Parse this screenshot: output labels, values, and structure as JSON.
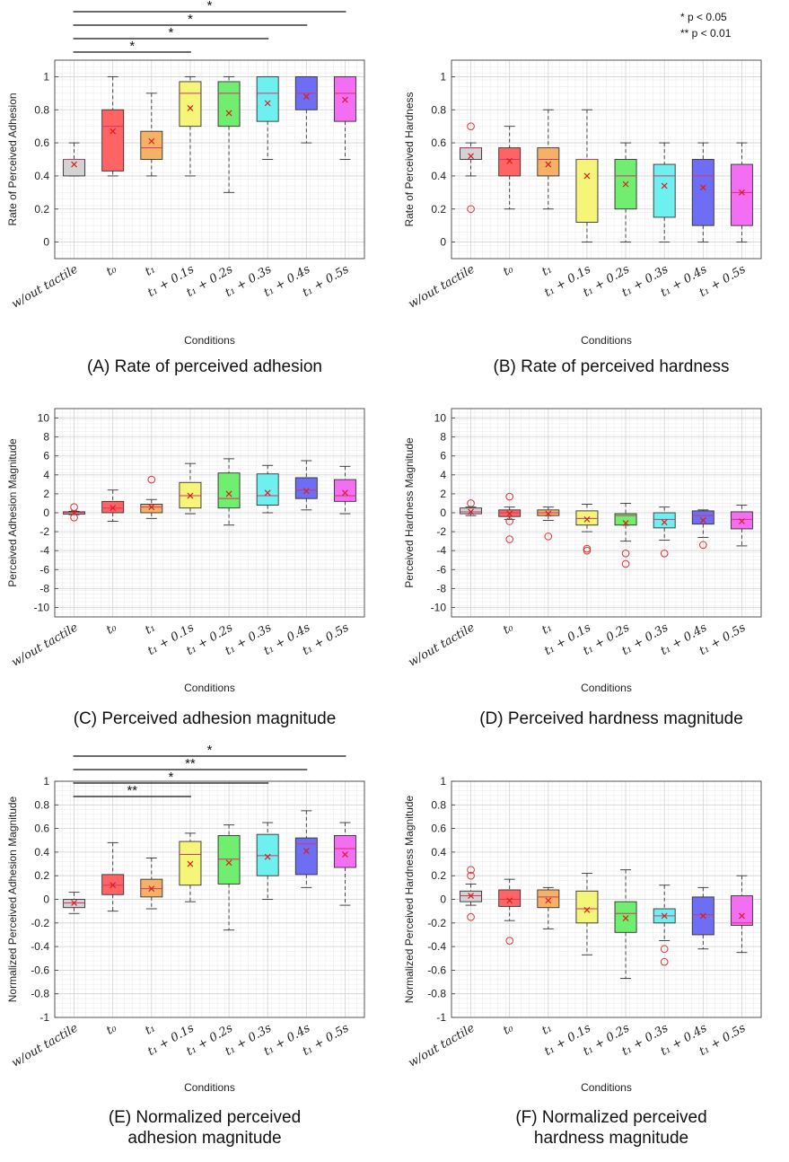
{
  "legend_note": {
    "single": "*   p < 0.05",
    "double": "** p < 0.01"
  },
  "chart_data": [
    {
      "id": "A",
      "type": "box",
      "caption": [
        "(A) Rate of perceived adhesion"
      ],
      "ylabel": "Rate of Perceived Adhesion",
      "xlabel": "Conditions",
      "ylim": [
        -0.1,
        1.1
      ],
      "yticks": [
        0,
        0.2,
        0.4,
        0.6,
        0.8,
        1
      ],
      "categories": [
        "w/out tactile",
        "t₀",
        "t₁",
        "t₁ + 0.1s",
        "t₁ + 0.2s",
        "t₁ + 0.3s",
        "t₁ + 0.4s",
        "t₁ + 0.5s"
      ],
      "colors": [
        "#d3d3d3",
        "#ff6464",
        "#f5b266",
        "#f5f57a",
        "#6fee6f",
        "#6ff0f0",
        "#6e6ef4",
        "#f46ef4"
      ],
      "boxes": [
        {
          "min": 0.4,
          "q1": 0.4,
          "median": 0.5,
          "q3": 0.5,
          "max": 0.6,
          "mean": 0.47,
          "outliers": []
        },
        {
          "min": 0.4,
          "q1": 0.43,
          "median": 0.7,
          "q3": 0.8,
          "max": 1.0,
          "mean": 0.67,
          "outliers": []
        },
        {
          "min": 0.4,
          "q1": 0.5,
          "median": 0.57,
          "q3": 0.67,
          "max": 0.9,
          "mean": 0.61,
          "outliers": []
        },
        {
          "min": 0.4,
          "q1": 0.7,
          "median": 0.9,
          "q3": 0.97,
          "max": 1.0,
          "mean": 0.81,
          "outliers": []
        },
        {
          "min": 0.3,
          "q1": 0.7,
          "median": 0.9,
          "q3": 0.97,
          "max": 1.0,
          "mean": 0.78,
          "outliers": []
        },
        {
          "min": 0.5,
          "q1": 0.73,
          "median": 0.9,
          "q3": 1.0,
          "max": 1.0,
          "mean": 0.84,
          "outliers": []
        },
        {
          "min": 0.6,
          "q1": 0.8,
          "median": 0.9,
          "q3": 1.0,
          "max": 1.0,
          "mean": 0.88,
          "outliers": []
        },
        {
          "min": 0.5,
          "q1": 0.73,
          "median": 0.9,
          "q3": 1.0,
          "max": 1.0,
          "mean": 0.86,
          "outliers": []
        }
      ],
      "significance": [
        {
          "from": 0,
          "to": 3,
          "label": "*"
        },
        {
          "from": 0,
          "to": 5,
          "label": "*"
        },
        {
          "from": 0,
          "to": 6,
          "label": "*"
        },
        {
          "from": 0,
          "to": 7,
          "label": "*"
        }
      ]
    },
    {
      "id": "B",
      "type": "box",
      "caption": [
        "(B) Rate of perceived hardness"
      ],
      "ylabel": "Rate of Perceived Hardness",
      "xlabel": "Conditions",
      "ylim": [
        -0.1,
        1.1
      ],
      "yticks": [
        0,
        0.2,
        0.4,
        0.6,
        0.8,
        1
      ],
      "categories": [
        "w/out tactile",
        "t₀",
        "t₁",
        "t₁ + 0.1s",
        "t₁ + 0.2s",
        "t₁ + 0.3s",
        "t₁ + 0.4s",
        "t₁ + 0.5s"
      ],
      "colors": [
        "#d3d3d3",
        "#ff6464",
        "#f5b266",
        "#f5f57a",
        "#6fee6f",
        "#6ff0f0",
        "#6e6ef4",
        "#f46ef4"
      ],
      "boxes": [
        {
          "min": 0.4,
          "q1": 0.5,
          "median": 0.57,
          "q3": 0.57,
          "max": 0.6,
          "mean": 0.52,
          "outliers": [
            0.7,
            0.2
          ]
        },
        {
          "min": 0.2,
          "q1": 0.4,
          "median": 0.5,
          "q3": 0.57,
          "max": 0.7,
          "mean": 0.49,
          "outliers": []
        },
        {
          "min": 0.2,
          "q1": 0.4,
          "median": 0.5,
          "q3": 0.57,
          "max": 0.8,
          "mean": 0.47,
          "outliers": []
        },
        {
          "min": 0.0,
          "q1": 0.12,
          "median": 0.5,
          "q3": 0.5,
          "max": 0.8,
          "mean": 0.4,
          "outliers": []
        },
        {
          "min": 0.0,
          "q1": 0.2,
          "median": 0.4,
          "q3": 0.5,
          "max": 0.6,
          "mean": 0.35,
          "outliers": []
        },
        {
          "min": 0.0,
          "q1": 0.15,
          "median": 0.4,
          "q3": 0.47,
          "max": 0.6,
          "mean": 0.34,
          "outliers": []
        },
        {
          "min": 0.0,
          "q1": 0.1,
          "median": 0.4,
          "q3": 0.5,
          "max": 0.6,
          "mean": 0.33,
          "outliers": []
        },
        {
          "min": 0.0,
          "q1": 0.1,
          "median": 0.3,
          "q3": 0.47,
          "max": 0.6,
          "mean": 0.3,
          "outliers": []
        }
      ],
      "significance": []
    },
    {
      "id": "C",
      "type": "box",
      "caption": [
        "(C) Perceived adhesion magnitude"
      ],
      "ylabel": "Perceived Adhesion Magnitude",
      "xlabel": "Conditions",
      "ylim": [
        -11,
        11
      ],
      "yticks": [
        -10,
        -8,
        -6,
        -4,
        -2,
        0,
        2,
        4,
        6,
        8,
        10
      ],
      "categories": [
        "w/out tactile",
        "t₀",
        "t₁",
        "t₁ + 0.1s",
        "t₁ + 0.2s",
        "t₁ + 0.3s",
        "t₁ + 0.4s",
        "t₁ + 0.5s"
      ],
      "colors": [
        "#d3d3d3",
        "#ff6464",
        "#f5b266",
        "#f5f57a",
        "#6fee6f",
        "#6ff0f0",
        "#6e6ef4",
        "#f46ef4"
      ],
      "boxes": [
        {
          "min": -0.2,
          "q1": -0.15,
          "median": 0.0,
          "q3": 0.1,
          "max": 0.15,
          "mean": 0.0,
          "outliers": [
            0.6,
            -0.5
          ]
        },
        {
          "min": -0.9,
          "q1": 0.0,
          "median": 0.5,
          "q3": 1.2,
          "max": 2.4,
          "mean": 0.5,
          "outliers": []
        },
        {
          "min": -0.6,
          "q1": 0.0,
          "median": 0.6,
          "q3": 0.9,
          "max": 1.4,
          "mean": 0.6,
          "outliers": [
            3.5
          ]
        },
        {
          "min": -0.1,
          "q1": 0.5,
          "median": 1.8,
          "q3": 3.2,
          "max": 5.2,
          "mean": 1.8,
          "outliers": []
        },
        {
          "min": -1.3,
          "q1": 0.5,
          "median": 1.5,
          "q3": 4.2,
          "max": 5.7,
          "mean": 2.0,
          "outliers": []
        },
        {
          "min": 0.0,
          "q1": 0.8,
          "median": 1.8,
          "q3": 4.1,
          "max": 5.0,
          "mean": 2.1,
          "outliers": []
        },
        {
          "min": 0.3,
          "q1": 1.5,
          "median": 2.4,
          "q3": 3.7,
          "max": 5.5,
          "mean": 2.3,
          "outliers": []
        },
        {
          "min": -0.1,
          "q1": 1.2,
          "median": 1.8,
          "q3": 3.5,
          "max": 4.9,
          "mean": 2.1,
          "outliers": []
        }
      ],
      "significance": []
    },
    {
      "id": "D",
      "type": "box",
      "caption": [
        "(D) Perceived hardness magnitude"
      ],
      "ylabel": "Perceived Hardness Magnitude",
      "xlabel": "Conditions",
      "ylim": [
        -11,
        11
      ],
      "yticks": [
        -10,
        -8,
        -6,
        -4,
        -2,
        0,
        2,
        4,
        6,
        8,
        10
      ],
      "categories": [
        "w/out tactile",
        "t₀",
        "t₁",
        "t₁ + 0.1s",
        "t₁ + 0.2s",
        "t₁ + 0.3s",
        "t₁ + 0.4s",
        "t₁ + 0.5s"
      ],
      "colors": [
        "#d3d3d3",
        "#ff6464",
        "#f5b266",
        "#f5f57a",
        "#6fee6f",
        "#6ff0f0",
        "#6e6ef4",
        "#f46ef4"
      ],
      "boxes": [
        {
          "min": -0.3,
          "q1": -0.1,
          "median": 0.1,
          "q3": 0.5,
          "max": 0.6,
          "mean": 0.1,
          "outliers": [
            1.0
          ]
        },
        {
          "min": -0.7,
          "q1": -0.4,
          "median": 0.0,
          "q3": 0.3,
          "max": 0.6,
          "mean": -0.1,
          "outliers": [
            1.7,
            -0.9,
            -2.8
          ]
        },
        {
          "min": -0.8,
          "q1": -0.3,
          "median": 0.0,
          "q3": 0.3,
          "max": 0.6,
          "mean": -0.1,
          "outliers": [
            -2.5
          ]
        },
        {
          "min": -2.0,
          "q1": -1.3,
          "median": -0.6,
          "q3": 0.2,
          "max": 0.9,
          "mean": -0.7,
          "outliers": [
            -3.8,
            -4.0
          ]
        },
        {
          "min": -3.0,
          "q1": -1.3,
          "median": -0.3,
          "q3": -0.1,
          "max": 1.0,
          "mean": -1.1,
          "outliers": [
            -4.3,
            -5.4
          ]
        },
        {
          "min": -2.9,
          "q1": -1.6,
          "median": -0.7,
          "q3": 0.0,
          "max": 0.6,
          "mean": -1.0,
          "outliers": [
            -4.3
          ]
        },
        {
          "min": -2.6,
          "q1": -1.2,
          "median": -0.3,
          "q3": 0.2,
          "max": 0.3,
          "mean": -0.8,
          "outliers": [
            -3.4
          ]
        },
        {
          "min": -3.5,
          "q1": -1.7,
          "median": -0.7,
          "q3": 0.1,
          "max": 0.8,
          "mean": -0.9,
          "outliers": []
        }
      ],
      "significance": []
    },
    {
      "id": "E",
      "type": "box",
      "caption": [
        "(E) Normalized perceived",
        "adhesion magnitude"
      ],
      "ylabel": "Normalized Perceived Adhesion Magnitude",
      "xlabel": "Conditions",
      "ylim": [
        -1,
        1
      ],
      "yticks": [
        -1,
        -0.8,
        -0.6,
        -0.4,
        -0.2,
        0,
        0.2,
        0.4,
        0.6,
        0.8,
        1
      ],
      "categories": [
        "w/out tactile",
        "t₀",
        "t₁",
        "t₁ + 0.1s",
        "t₁ + 0.2s",
        "t₁ + 0.3s",
        "t₁ + 0.4s",
        "t₁ + 0.5s"
      ],
      "colors": [
        "#d3d3d3",
        "#ff6464",
        "#f5b266",
        "#f5f57a",
        "#6fee6f",
        "#6ff0f0",
        "#6e6ef4",
        "#f46ef4"
      ],
      "boxes": [
        {
          "min": -0.12,
          "q1": -0.07,
          "median": -0.03,
          "q3": 0.0,
          "max": 0.06,
          "mean": -0.03,
          "outliers": []
        },
        {
          "min": -0.1,
          "q1": 0.04,
          "median": 0.12,
          "q3": 0.21,
          "max": 0.48,
          "mean": 0.12,
          "outliers": []
        },
        {
          "min": -0.08,
          "q1": 0.02,
          "median": 0.09,
          "q3": 0.17,
          "max": 0.35,
          "mean": 0.09,
          "outliers": []
        },
        {
          "min": -0.02,
          "q1": 0.12,
          "median": 0.38,
          "q3": 0.49,
          "max": 0.56,
          "mean": 0.3,
          "outliers": []
        },
        {
          "min": -0.26,
          "q1": 0.13,
          "median": 0.34,
          "q3": 0.54,
          "max": 0.63,
          "mean": 0.31,
          "outliers": []
        },
        {
          "min": 0.0,
          "q1": 0.2,
          "median": 0.37,
          "q3": 0.55,
          "max": 0.65,
          "mean": 0.36,
          "outliers": []
        },
        {
          "min": 0.1,
          "q1": 0.21,
          "median": 0.47,
          "q3": 0.52,
          "max": 0.75,
          "mean": 0.41,
          "outliers": []
        },
        {
          "min": -0.05,
          "q1": 0.27,
          "median": 0.43,
          "q3": 0.54,
          "max": 0.65,
          "mean": 0.38,
          "outliers": []
        }
      ],
      "significance": [
        {
          "from": 0,
          "to": 3,
          "label": "**"
        },
        {
          "from": 0,
          "to": 5,
          "label": "*"
        },
        {
          "from": 0,
          "to": 6,
          "label": "**"
        },
        {
          "from": 0,
          "to": 7,
          "label": "*"
        }
      ]
    },
    {
      "id": "F",
      "type": "box",
      "caption": [
        "(F) Normalized perceived",
        "hardness magnitude"
      ],
      "ylabel": "Normalized Perceived Hardness Magnitude",
      "xlabel": "Conditions",
      "ylim": [
        -1,
        1
      ],
      "yticks": [
        -1,
        -0.8,
        -0.6,
        -0.4,
        -0.2,
        0,
        0.2,
        0.4,
        0.6,
        0.8,
        1
      ],
      "categories": [
        "w/out tactile",
        "t₀",
        "t₁",
        "t₁ + 0.1s",
        "t₁ + 0.2s",
        "t₁ + 0.3s",
        "t₁ + 0.4s",
        "t₁ + 0.5s"
      ],
      "colors": [
        "#d3d3d3",
        "#ff6464",
        "#f5b266",
        "#f5f57a",
        "#6fee6f",
        "#6ff0f0",
        "#6e6ef4",
        "#f46ef4"
      ],
      "boxes": [
        {
          "min": -0.05,
          "q1": -0.02,
          "median": 0.03,
          "q3": 0.07,
          "max": 0.13,
          "mean": 0.03,
          "outliers": [
            0.25,
            0.2,
            -0.15
          ]
        },
        {
          "min": -0.18,
          "q1": -0.06,
          "median": 0.0,
          "q3": 0.08,
          "max": 0.17,
          "mean": -0.01,
          "outliers": [
            -0.35
          ]
        },
        {
          "min": -0.25,
          "q1": -0.07,
          "median": 0.02,
          "q3": 0.08,
          "max": 0.1,
          "mean": -0.01,
          "outliers": []
        },
        {
          "min": -0.47,
          "q1": -0.2,
          "median": -0.08,
          "q3": 0.07,
          "max": 0.22,
          "mean": -0.09,
          "outliers": []
        },
        {
          "min": -0.67,
          "q1": -0.28,
          "median": -0.12,
          "q3": -0.02,
          "max": 0.25,
          "mean": -0.16,
          "outliers": []
        },
        {
          "min": -0.35,
          "q1": -0.2,
          "median": -0.14,
          "q3": -0.08,
          "max": 0.12,
          "mean": -0.14,
          "outliers": [
            -0.42,
            -0.53
          ]
        },
        {
          "min": -0.42,
          "q1": -0.3,
          "median": -0.13,
          "q3": 0.02,
          "max": 0.1,
          "mean": -0.14,
          "outliers": []
        },
        {
          "min": -0.45,
          "q1": -0.22,
          "median": -0.2,
          "q3": 0.03,
          "max": 0.2,
          "mean": -0.14,
          "outliers": []
        }
      ],
      "significance": []
    }
  ]
}
